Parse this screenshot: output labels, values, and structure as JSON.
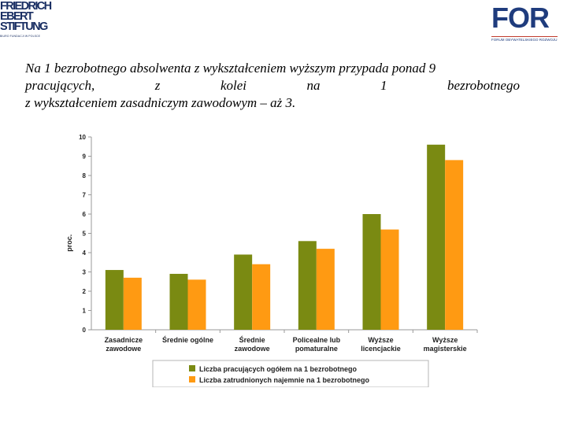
{
  "logos": {
    "fes_lines": [
      "FRIEDRICH",
      "EBERT",
      "STIFTUNG"
    ],
    "fes_tagline": "BIURO FUNDACJI W POLSCE",
    "for_name": "FOR",
    "for_tagline": "FORUM OBYWATELSKIEGO ROZWOJU"
  },
  "headline": {
    "line1": "Na 1 bezrobotnego absolwenta z wykształceniem wyższym przypada ponad 9",
    "line2_words": [
      "pracujących,",
      "z",
      "kolei",
      "na",
      "1",
      "bezrobotnego"
    ],
    "line3": "z wykształceniem zasadniczym zawodowym – aż 3."
  },
  "chart_data": {
    "type": "bar",
    "title": "",
    "xlabel": "",
    "ylabel": "proc.",
    "ylim": [
      0,
      10
    ],
    "yticks": [
      0,
      1,
      2,
      3,
      4,
      5,
      6,
      7,
      8,
      9,
      10
    ],
    "grid": false,
    "legend_position": "bottom",
    "categories": [
      [
        "Zasadnicze",
        "zawodowe"
      ],
      [
        "Średnie ogólne"
      ],
      [
        "Średnie",
        "zawodowe"
      ],
      [
        "Policealne lub",
        "pomaturalne"
      ],
      [
        "Wyższe",
        "licencjackie"
      ],
      [
        "Wyższe",
        "magisterskie"
      ]
    ],
    "series": [
      {
        "name": "Liczba pracujących ogółem na 1 bezrobotnego",
        "color": "#7a8a12",
        "values": [
          3.1,
          2.9,
          3.9,
          4.6,
          6.0,
          9.6
        ]
      },
      {
        "name": "Liczba zatrudnionych najemnie na 1 bezrobotnego",
        "color": "#ff9a12",
        "values": [
          2.7,
          2.6,
          3.4,
          4.2,
          5.2,
          8.8
        ]
      }
    ]
  }
}
